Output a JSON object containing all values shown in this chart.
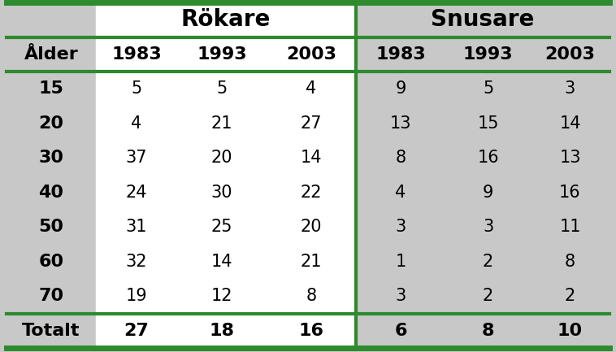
{
  "col_headers_row2": [
    "Ålder",
    "1983",
    "1993",
    "2003",
    "1983",
    "1993",
    "2003"
  ],
  "rows": [
    [
      "15",
      "5",
      "5",
      "4",
      "9",
      "5",
      "3"
    ],
    [
      "20",
      "4",
      "21",
      "27",
      "13",
      "15",
      "14"
    ],
    [
      "30",
      "37",
      "20",
      "14",
      "8",
      "16",
      "13"
    ],
    [
      "40",
      "24",
      "30",
      "22",
      "4",
      "9",
      "16"
    ],
    [
      "50",
      "31",
      "25",
      "20",
      "3",
      "3",
      "11"
    ],
    [
      "60",
      "32",
      "14",
      "21",
      "1",
      "2",
      "8"
    ],
    [
      "70",
      "19",
      "12",
      "8",
      "3",
      "2",
      "2"
    ]
  ],
  "totalt_row": [
    "Totalt",
    "27",
    "18",
    "16",
    "6",
    "8",
    "10"
  ],
  "bg_color": "#c8c8c8",
  "white_bg": "#ffffff",
  "border_color": "#2d8a2d",
  "text_color": "#000000",
  "fig_width": 7.58,
  "fig_height": 4.33,
  "dpi": 100
}
